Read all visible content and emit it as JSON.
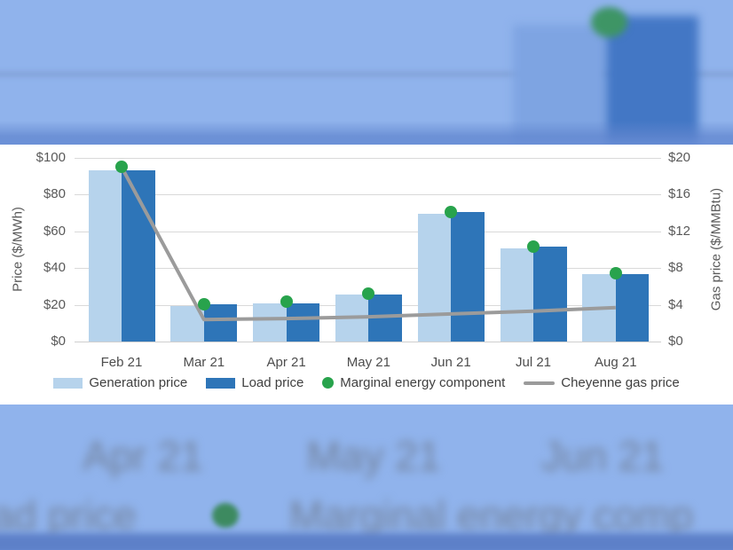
{
  "background": {
    "blurred_month_labels": [
      "Apr 21",
      "May 21",
      "Jun 21"
    ],
    "blurred_legend_partial_left": "ad price",
    "blurred_legend_partial_right": "Marginal energy comp",
    "colors": {
      "base_blue": "#90b3ec",
      "blurred_bar_light": "#7ea4e2",
      "blurred_bar_dark": "#4377c5",
      "blurred_marker_green": "#3e9565",
      "bottom_band_blue": "#5d80c8",
      "blurred_text": "#72829c"
    }
  },
  "chart_data": {
    "type": "bar",
    "categories": [
      "Feb 21",
      "Mar 21",
      "Apr 21",
      "May 21",
      "Jun 21",
      "Jul 21",
      "Aug 21"
    ],
    "series": [
      {
        "name": "Generation price",
        "type": "bar",
        "axis": "left",
        "color": "#b6d3ec",
        "values": [
          93,
          19.5,
          21,
          25.5,
          69.5,
          50.5,
          36.5
        ]
      },
      {
        "name": "Load price",
        "type": "bar",
        "axis": "left",
        "color": "#2e75b8",
        "values": [
          93,
          20.5,
          21,
          25.5,
          70.5,
          51.5,
          36.5
        ]
      },
      {
        "name": "Marginal energy component",
        "type": "scatter",
        "axis": "left",
        "color": "#28a34c",
        "values": [
          95,
          20.5,
          21.5,
          26,
          70.5,
          51.5,
          37
        ]
      },
      {
        "name": "Cheyenne gas price",
        "type": "line",
        "axis": "right",
        "color": "#9b9b9b",
        "values": [
          19,
          2.4,
          2.5,
          2.7,
          3,
          3.3,
          3.7
        ]
      }
    ],
    "left_axis": {
      "label": "Price ($/MWh)",
      "min": 0,
      "max": 100,
      "ticks": [
        "$0",
        "$20",
        "$40",
        "$60",
        "$80",
        "$100"
      ]
    },
    "right_axis": {
      "label": "Gas price ($/MMBtu)",
      "min": 0,
      "max": 20,
      "ticks": [
        "$0",
        "$4",
        "$8",
        "$12",
        "$16",
        "$20"
      ]
    },
    "legend_position": "bottom",
    "grid": true
  }
}
